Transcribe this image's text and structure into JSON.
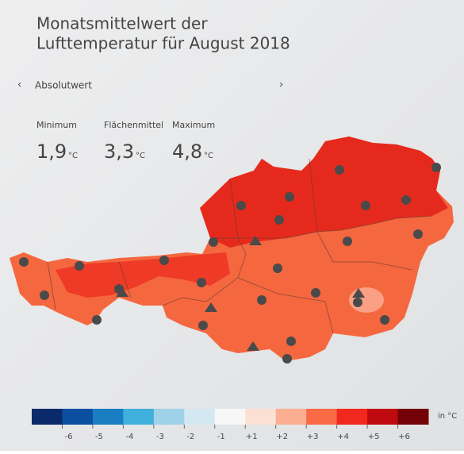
{
  "header": {
    "title_lines": [
      "Monatsmittelwert der",
      "Lufttemperatur für August 2018"
    ]
  },
  "nav": {
    "label": "Absolutwert"
  },
  "stats": [
    {
      "label": "Minimum",
      "value": "1,9",
      "unit": "°C"
    },
    {
      "label": "Flächenmittel",
      "value": "3,3",
      "unit": "°C"
    },
    {
      "label": "Maximum",
      "value": "4,8",
      "unit": "°C"
    }
  ],
  "legend": {
    "unit": "in °C",
    "colors": [
      "#0a2a6b",
      "#0c4fa0",
      "#1a7ec2",
      "#3fb0dc",
      "#9fd1e8",
      "#d4e8f2",
      "#f7f7f7",
      "#fde0d4",
      "#fcae92",
      "#fa6a45",
      "#f0281d",
      "#bf0a10",
      "#740008"
    ],
    "ticks": [
      "-6",
      "-5",
      "-4",
      "-3",
      "-2",
      "-1",
      "+1",
      "+2",
      "+3",
      "+4",
      "+5",
      "+6"
    ]
  }
}
